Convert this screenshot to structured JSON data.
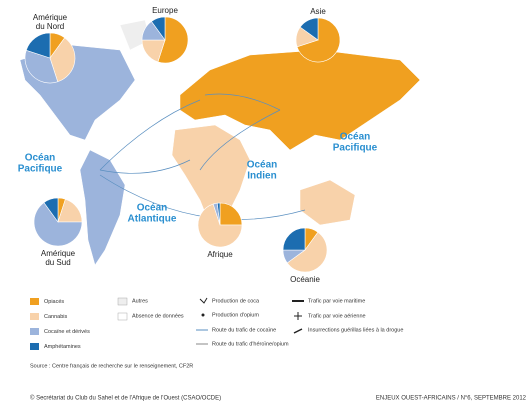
{
  "map": {
    "oceans": [
      {
        "lines": [
          "Océan",
          "Pacifique"
        ]
      },
      {
        "lines": [
          "Océan",
          "Pacifique"
        ]
      },
      {
        "lines": [
          "Océan",
          "Indien"
        ]
      },
      {
        "lines": [
          "Océan",
          "Atlantique"
        ]
      }
    ],
    "segments": [
      {
        "name": "Opiacés",
        "color": "#f0a020"
      },
      {
        "name": "Cannabis",
        "color": "#f8d2aa"
      },
      {
        "name": "Cocaïne et dérivés",
        "color": "#9cb4dc"
      },
      {
        "name": "Amphétamines",
        "color": "#1c6db0"
      }
    ],
    "regions": [
      {
        "lines": [
          "Amérique",
          "du Nord"
        ],
        "values": [
          10,
          35,
          35,
          20
        ]
      },
      {
        "lines": [
          "Europe"
        ],
        "values": [
          55,
          20,
          15,
          10
        ]
      },
      {
        "lines": [
          "Asie"
        ],
        "values": [
          70,
          15,
          0,
          15
        ]
      },
      {
        "lines": [
          "Amérique",
          "du Sud"
        ],
        "values": [
          5,
          20,
          65,
          10
        ]
      },
      {
        "lines": [
          "Afrique"
        ],
        "values": [
          25,
          70,
          3,
          2
        ]
      },
      {
        "lines": [
          "Océanie"
        ],
        "values": [
          10,
          55,
          10,
          25
        ]
      }
    ],
    "legend_other": [
      "Autres",
      "Absence de données",
      "Production de coca",
      "Production d'opium",
      "Route du trafic de cocaïne",
      "Route du trafic d'héroïne/opium",
      "Trafic par voie maritime",
      "Trafic par voie aérienne",
      "Insurrections guérillas liées à la drogue"
    ],
    "source": "Source : Centre français de recherche sur le renseignement, CF2R",
    "footer_left": "© Secrétariat du Club du Sahel et de l'Afrique de l'Ouest (CSAO/OCDE)",
    "footer_right": "ENJEUX OUEST-AFRICAINS / N°6, SEPTEMBRE 2012"
  }
}
